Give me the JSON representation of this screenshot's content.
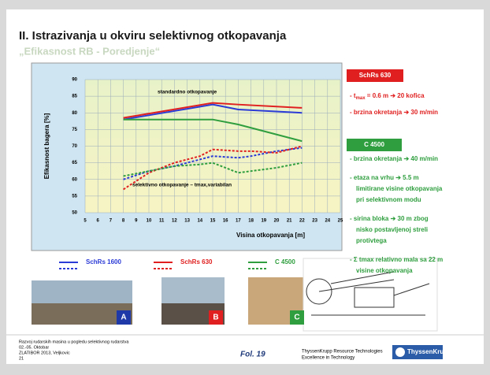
{
  "slide": {
    "title": "II. Istrazivanja u okviru selektivnog otkopavanja",
    "subtitle": "„Efikasnost RB - Poredjenje“",
    "panel1": {
      "header": "SchRs 630",
      "item1": {
        "t": "- t",
        "sub": "max",
        "rest": " = 0.6 m   ➔  20 kofica"
      },
      "item2": "- brzina okretanja  ➔ 30 m/min"
    },
    "panel2": {
      "header": "C 4500",
      "items": [
        [
          "- brzina okretanja  ➔  40 m/min"
        ],
        [
          "- etaza na vrhu  ➔  5.5 m",
          "limitirane visine otkopavanja",
          "pri selektivnom modu"
        ],
        [
          "- sirina bloka  ➔  30 m zbog",
          "nisko postavljenoj streli",
          "protivtega"
        ],
        [
          "- Σ tmax relativno mala sa 22 m",
          "visine otkopavanja"
        ]
      ]
    },
    "photo_labels": [
      "A",
      "B",
      "C"
    ],
    "footer": {
      "lines": [
        "Razvoj rudarskih masina u pogledu selektivnog rudarstva",
        "02.-05. Oktobar",
        "ZLATIBOR 2013, Veljkovic",
        "21"
      ],
      "fol": "Fol. 19",
      "company": [
        "ThyssenKrupp Resource Technologies",
        "Excellence in Technology"
      ],
      "logo": "ThyssenKrupp"
    }
  },
  "chart_data": {
    "type": "line",
    "ylabel": "Efikasnost bagera [%]",
    "xlabel": "Visina otkopavanja [m]",
    "annotations": [
      "standardno otkopavanje",
      "selektivno otkopavanje – tmax,variabilan"
    ],
    "xlim": [
      5,
      25
    ],
    "xticks": [
      5,
      6,
      7,
      8,
      9,
      10,
      11,
      12,
      13,
      14,
      15,
      16,
      17,
      18,
      19,
      20,
      21,
      22,
      23,
      24,
      25
    ],
    "ylim": [
      50,
      90
    ],
    "yticks": [
      50,
      55,
      60,
      65,
      70,
      75,
      80,
      85,
      90
    ],
    "grid": true,
    "x_standard": [
      8,
      15,
      17,
      22
    ],
    "x_selective": [
      8,
      10,
      12,
      14,
      15,
      17,
      18,
      20,
      22
    ],
    "series": [
      {
        "name": "SchRs 1600",
        "color": "#2b3bd6",
        "standard": [
          78,
          82.5,
          81,
          80
        ],
        "selective": [
          60,
          62.5,
          64,
          66,
          67,
          66.5,
          67,
          68.5,
          69.5
        ]
      },
      {
        "name": "SchRs 630",
        "color": "#e02020",
        "standard": [
          78.5,
          83,
          82.5,
          81.5
        ],
        "selective": [
          57,
          62,
          65,
          67,
          69,
          68.5,
          68.5,
          68,
          70
        ]
      },
      {
        "name": "C 4500",
        "color": "#2e9e3e",
        "standard": [
          78,
          78,
          76.5,
          71.5
        ],
        "selective": [
          61,
          62.5,
          64,
          64.5,
          65,
          62,
          62.5,
          63.5,
          65
        ]
      }
    ]
  }
}
